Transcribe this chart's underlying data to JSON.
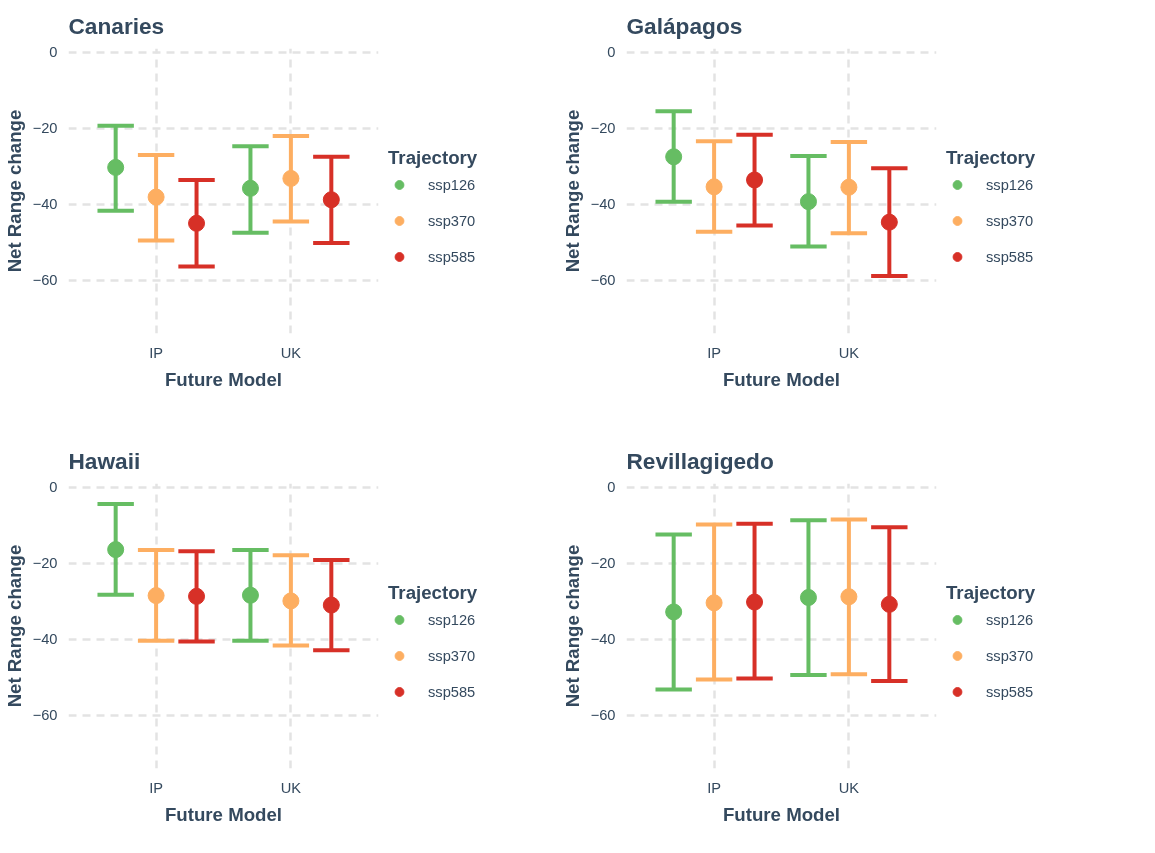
{
  "chart_data": [
    {
      "type": "scatter",
      "title": "Canaries",
      "xlabel": "Future Model",
      "ylabel": "Net Range change",
      "legend_title": "Trajectory",
      "categories": [
        "IP",
        "UK"
      ],
      "ylim": [
        -74,
        1
      ],
      "yticks": [
        {
          "value": 0,
          "label": "0"
        },
        {
          "value": -20,
          "label": "−20"
        },
        {
          "value": -40,
          "label": "−40"
        },
        {
          "value": -60,
          "label": "−60"
        }
      ],
      "grid": true,
      "legend": "right",
      "marker": "circle",
      "series": [
        {
          "name": "ssp126",
          "color": "#66bd63",
          "values": [
            -30.3,
            -35.8
          ],
          "errors": [
            [
              -41.7,
              -19.3
            ],
            [
              -47.5,
              -24.7
            ]
          ]
        },
        {
          "name": "ssp370",
          "color": "#fdae61",
          "values": [
            -38.1,
            -33.2
          ],
          "errors": [
            [
              -49.5,
              -27
            ],
            [
              -44.5,
              -22
            ]
          ]
        },
        {
          "name": "ssp585",
          "color": "#d73027",
          "values": [
            -45,
            -38.8
          ],
          "errors": [
            [
              -56.4,
              -33.6
            ],
            [
              -50.2,
              -27.5
            ]
          ]
        }
      ]
    },
    {
      "type": "scatter",
      "title": "Galápagos",
      "xlabel": "Future Model",
      "ylabel": "Net Range change",
      "legend_title": "Trajectory",
      "categories": [
        "IP",
        "UK"
      ],
      "ylim": [
        -74,
        1
      ],
      "yticks": [
        {
          "value": 0,
          "label": "0"
        },
        {
          "value": -20,
          "label": "−20"
        },
        {
          "value": -40,
          "label": "−40"
        },
        {
          "value": -60,
          "label": "−60"
        }
      ],
      "grid": true,
      "legend": "right",
      "marker": "circle",
      "series": [
        {
          "name": "ssp126",
          "color": "#66bd63",
          "values": [
            -27.5,
            -39.3
          ],
          "errors": [
            [
              -39.3,
              -15.5
            ],
            [
              -51.1,
              -27.3
            ]
          ]
        },
        {
          "name": "ssp370",
          "color": "#fdae61",
          "values": [
            -35.4,
            -35.5
          ],
          "errors": [
            [
              -47.2,
              -23.4
            ],
            [
              -47.6,
              -23.6
            ]
          ]
        },
        {
          "name": "ssp585",
          "color": "#d73027",
          "values": [
            -33.6,
            -44.7
          ],
          "errors": [
            [
              -45.6,
              -21.7
            ],
            [
              -58.9,
              -30.5
            ]
          ]
        }
      ]
    },
    {
      "type": "scatter",
      "title": "Hawaii",
      "xlabel": "Future Model",
      "ylabel": "Net Range change",
      "legend_title": "Trajectory",
      "categories": [
        "IP",
        "UK"
      ],
      "ylim": [
        -74,
        1
      ],
      "yticks": [
        {
          "value": 0,
          "label": "0"
        },
        {
          "value": -20,
          "label": "−20"
        },
        {
          "value": -40,
          "label": "−40"
        },
        {
          "value": -60,
          "label": "−60"
        }
      ],
      "grid": true,
      "legend": "right",
      "marker": "circle",
      "series": [
        {
          "name": "ssp126",
          "color": "#66bd63",
          "values": [
            -16.4,
            -28.4
          ],
          "errors": [
            [
              -28.3,
              -4.4
            ],
            [
              -40.4,
              -16.5
            ]
          ]
        },
        {
          "name": "ssp370",
          "color": "#fdae61",
          "values": [
            -28.5,
            -29.9
          ],
          "errors": [
            [
              -40.4,
              -16.5
            ],
            [
              -41.6,
              -17.9
            ]
          ]
        },
        {
          "name": "ssp585",
          "color": "#d73027",
          "values": [
            -28.7,
            -31
          ],
          "errors": [
            [
              -40.6,
              -16.8
            ],
            [
              -42.9,
              -19.1
            ]
          ]
        }
      ]
    },
    {
      "type": "scatter",
      "title": "Revillagigedo",
      "xlabel": "Future Model",
      "ylabel": "Net Range change",
      "legend_title": "Trajectory",
      "categories": [
        "IP",
        "UK"
      ],
      "ylim": [
        -74,
        1
      ],
      "yticks": [
        {
          "value": 0,
          "label": "0"
        },
        {
          "value": -20,
          "label": "−20"
        },
        {
          "value": -40,
          "label": "−40"
        },
        {
          "value": -60,
          "label": "−60"
        }
      ],
      "grid": true,
      "legend": "right",
      "marker": "circle",
      "series": [
        {
          "name": "ssp126",
          "color": "#66bd63",
          "values": [
            -32.8,
            -29
          ],
          "errors": [
            [
              -53.2,
              -12.4
            ],
            [
              -49.4,
              -8.7
            ]
          ]
        },
        {
          "name": "ssp370",
          "color": "#fdae61",
          "values": [
            -30.4,
            -28.8
          ],
          "errors": [
            [
              -50.6,
              -9.8
            ],
            [
              -49.2,
              -8.5
            ]
          ]
        },
        {
          "name": "ssp585",
          "color": "#d73027",
          "values": [
            -30.2,
            -30.8
          ],
          "errors": [
            [
              -50.3,
              -9.6
            ],
            [
              -51,
              -10.5
            ]
          ]
        }
      ]
    }
  ]
}
